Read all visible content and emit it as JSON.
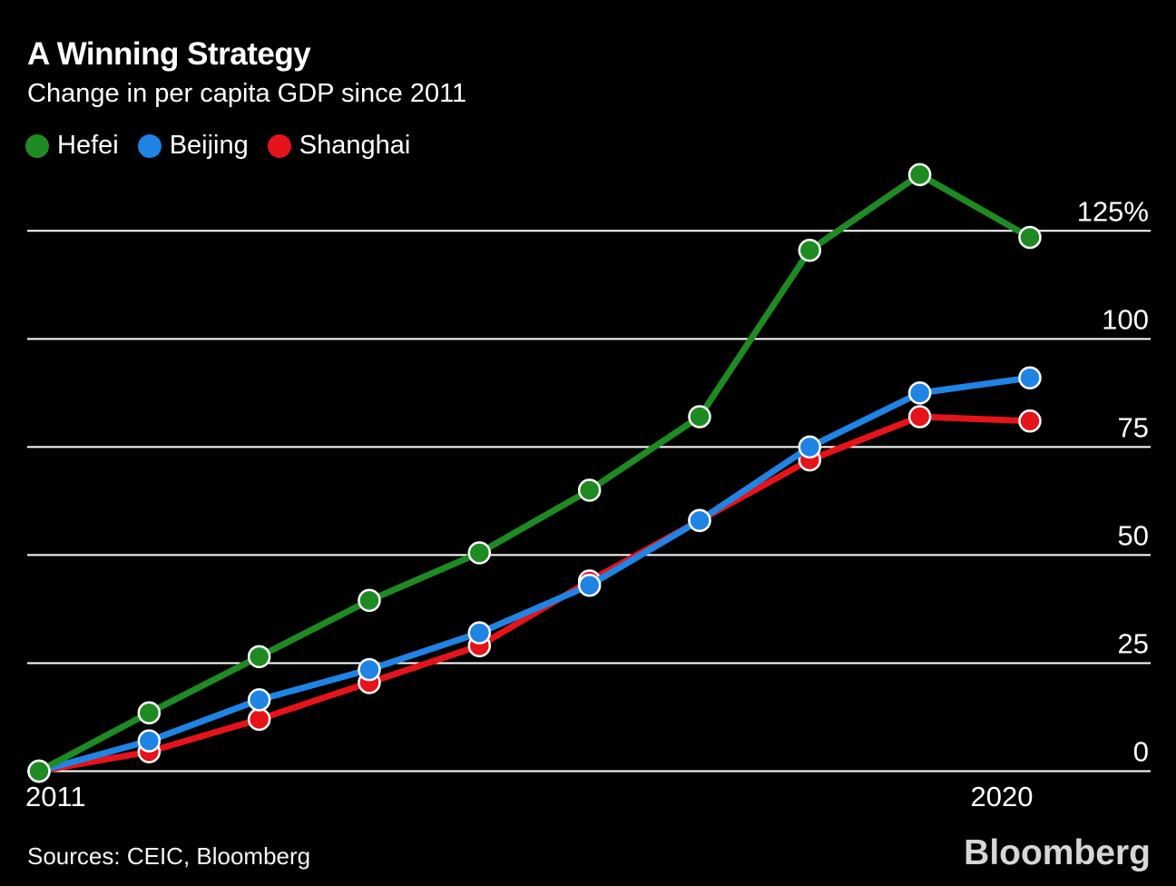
{
  "footer": {
    "sources": "Sources: CEIC, Bloomberg",
    "logo": "Bloomberg"
  },
  "chart_data": {
    "type": "line",
    "title": "A Winning Strategy",
    "subtitle": "Change in per capita GDP since 2011",
    "x": [
      2011,
      2012,
      2013,
      2014,
      2015,
      2016,
      2017,
      2018,
      2019,
      2020
    ],
    "series": [
      {
        "name": "Hefei",
        "color": "#1e8b22",
        "values": [
          0,
          13.5,
          26.5,
          39.5,
          50.5,
          65,
          82,
          120.5,
          138,
          123.5
        ]
      },
      {
        "name": "Beijing",
        "color": "#1f84e4",
        "values": [
          0,
          7,
          16.5,
          23.5,
          32,
          43,
          58,
          75,
          87.5,
          91
        ]
      },
      {
        "name": "Shanghai",
        "color": "#e5131a",
        "values": [
          0,
          4.5,
          12,
          20.5,
          29,
          44,
          58,
          72,
          82,
          81
        ]
      }
    ],
    "yticks": [
      {
        "value": 0,
        "label": "0"
      },
      {
        "value": 25,
        "label": "25"
      },
      {
        "value": 50,
        "label": "50"
      },
      {
        "value": 75,
        "label": "75"
      },
      {
        "value": 100,
        "label": "100"
      },
      {
        "value": 125,
        "label": "125%"
      }
    ],
    "xticks": [
      {
        "value": 2011,
        "label": "2011"
      },
      {
        "value": 2020,
        "label": "2020"
      }
    ],
    "ylim": [
      0,
      140
    ],
    "xlabel": "",
    "ylabel": "",
    "grid": "horizontal",
    "legend_position": "top-left",
    "marker": "circle",
    "background": "#000000",
    "text_color": "#ffffff"
  }
}
